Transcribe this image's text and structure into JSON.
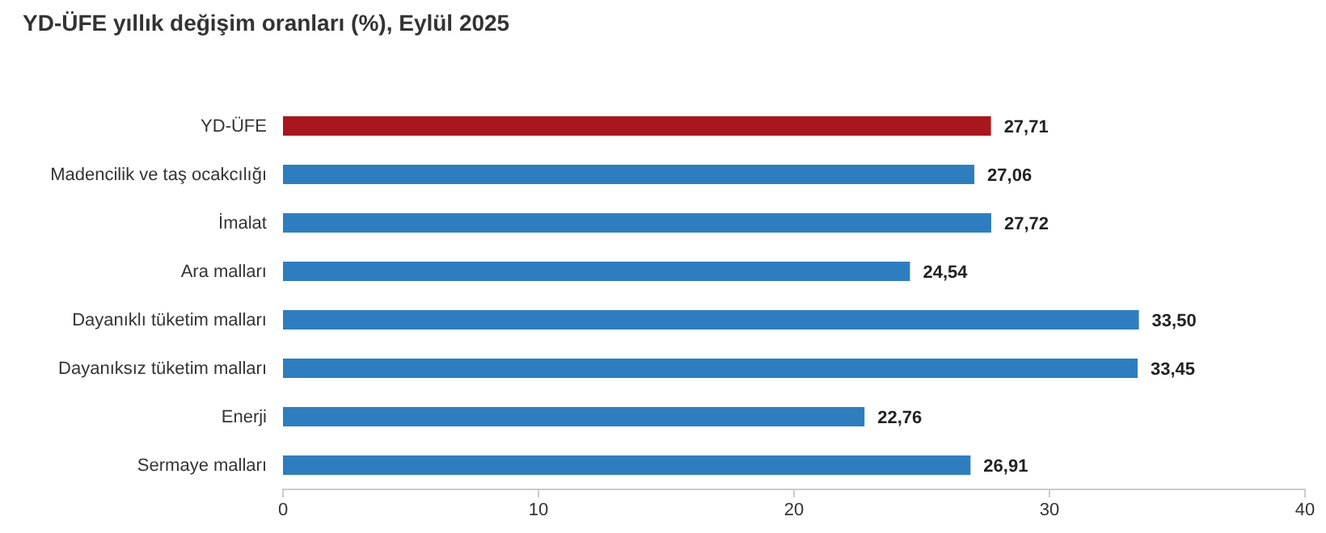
{
  "chart_data": {
    "type": "bar",
    "orientation": "horizontal",
    "title": "YD-ÜFE yıllık değişim oranları (%), Eylül 2025",
    "categories": [
      "YD-ÜFE",
      "Madencilik ve taş ocakcılığı",
      "İmalat",
      "Ara malları",
      "Dayanıklı tüketim malları",
      "Dayanıksız tüketim malları",
      "Enerji",
      "Sermaye malları"
    ],
    "values": [
      27.71,
      27.06,
      27.72,
      24.54,
      33.5,
      33.45,
      22.76,
      26.91
    ],
    "value_labels": [
      "27,71",
      "27,06",
      "27,72",
      "24,54",
      "33,50",
      "33,45",
      "22,76",
      "26,91"
    ],
    "colors": [
      "#a8171d",
      "#2e7ebf",
      "#2e7ebf",
      "#2e7ebf",
      "#2e7ebf",
      "#2e7ebf",
      "#2e7ebf",
      "#2e7ebf"
    ],
    "xlim": [
      0,
      40
    ],
    "xticks": [
      0,
      10,
      20,
      30,
      40
    ],
    "grid": false
  }
}
